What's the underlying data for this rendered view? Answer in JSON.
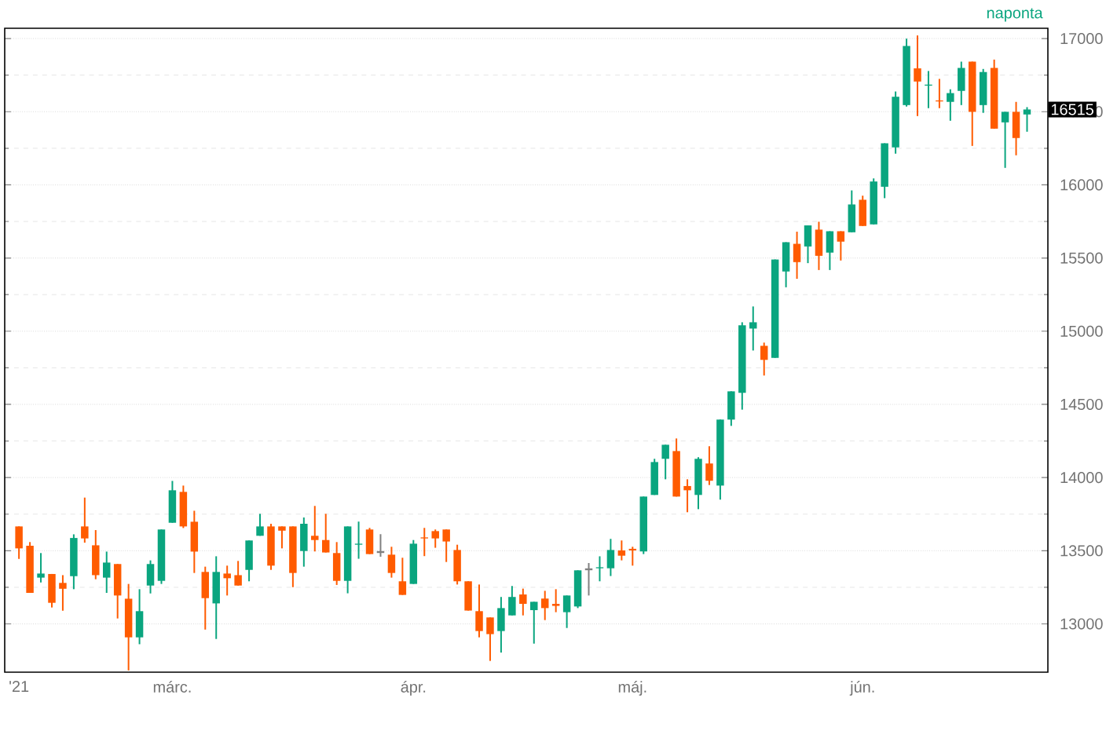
{
  "chart_data": {
    "type": "candlestick",
    "subtitle": "naponta",
    "categories": [
      "'21",
      null,
      null,
      null,
      null,
      null,
      null,
      null,
      null,
      null,
      null,
      null,
      null,
      null,
      "márc.",
      null,
      null,
      null,
      null,
      null,
      null,
      null,
      null,
      null,
      null,
      null,
      null,
      null,
      null,
      null,
      null,
      null,
      null,
      null,
      null,
      null,
      "ápr.",
      null,
      null,
      null,
      null,
      null,
      null,
      null,
      null,
      null,
      null,
      null,
      null,
      null,
      null,
      null,
      null,
      null,
      null,
      null,
      "máj.",
      null,
      null,
      null,
      null,
      null,
      null,
      null,
      null,
      null,
      null,
      null,
      null,
      null,
      null,
      null,
      null,
      null,
      null,
      null,
      null,
      "jún.",
      null,
      null,
      null,
      null,
      null,
      null,
      null,
      null,
      null,
      null,
      null,
      null,
      null,
      null,
      null
    ],
    "ohlc": [
      [
        13666,
        13666,
        13444,
        13516
      ],
      [
        13534,
        13559,
        13212,
        13212
      ],
      [
        13316,
        13484,
        13283,
        13344
      ],
      [
        13341,
        13341,
        13112,
        13144
      ],
      [
        13280,
        13333,
        13090,
        13240
      ],
      [
        13326,
        13612,
        13237,
        13587
      ],
      [
        13666,
        13863,
        13555,
        13584
      ],
      [
        13537,
        13641,
        13305,
        13333
      ],
      [
        13316,
        13494,
        13212,
        13419
      ],
      [
        13409,
        13409,
        13037,
        13194
      ],
      [
        13172,
        13273,
        12682,
        12908
      ],
      [
        12908,
        13237,
        12861,
        13087
      ],
      [
        13262,
        13434,
        13208,
        13409
      ],
      [
        13294,
        13645,
        13273,
        13645
      ],
      [
        13691,
        13977,
        13691,
        13913
      ],
      [
        13902,
        13945,
        13655,
        13666
      ],
      [
        13698,
        13773,
        13348,
        13494
      ],
      [
        13355,
        13391,
        12961,
        13176
      ],
      [
        13140,
        13462,
        12897,
        13355
      ],
      [
        13344,
        13398,
        13194,
        13312
      ],
      [
        13333,
        13430,
        13262,
        13262
      ],
      [
        13369,
        13570,
        13291,
        13570
      ],
      [
        13602,
        13752,
        13602,
        13666
      ],
      [
        13666,
        13684,
        13369,
        13398
      ],
      [
        13666,
        13666,
        13516,
        13637
      ],
      [
        13666,
        13666,
        13251,
        13348
      ],
      [
        13498,
        13727,
        13391,
        13684
      ],
      [
        13602,
        13806,
        13495,
        13573
      ],
      [
        13573,
        13752,
        13488,
        13488
      ],
      [
        13484,
        13559,
        13266,
        13294
      ],
      [
        13294,
        13666,
        13209,
        13666
      ],
      [
        13541,
        13699,
        13445,
        13548
      ],
      [
        13645,
        13656,
        13477,
        13477
      ],
      [
        13491,
        13613,
        13459,
        13491
      ],
      [
        13473,
        13527,
        13316,
        13348
      ],
      [
        13291,
        13452,
        13198,
        13198
      ],
      [
        13273,
        13573,
        13273,
        13548
      ],
      [
        13591,
        13656,
        13463,
        13584
      ],
      [
        13634,
        13645,
        13520,
        13584
      ],
      [
        13645,
        13645,
        13423,
        13563
      ],
      [
        13505,
        13541,
        13269,
        13291
      ],
      [
        13291,
        13291,
        13091,
        13091
      ],
      [
        13087,
        13269,
        12908,
        12951
      ],
      [
        13044,
        13044,
        12747,
        12930
      ],
      [
        12951,
        13184,
        12804,
        13108
      ],
      [
        13058,
        13259,
        13058,
        13184
      ],
      [
        13201,
        13241,
        13058,
        13137
      ],
      [
        13094,
        13151,
        12865,
        13151
      ],
      [
        13173,
        13226,
        13026,
        13108
      ],
      [
        13137,
        13237,
        13080,
        13123
      ],
      [
        13080,
        13194,
        12972,
        13194
      ],
      [
        13119,
        13366,
        13108,
        13366
      ],
      [
        13373,
        13416,
        13194,
        13373
      ],
      [
        13380,
        13462,
        13291,
        13387
      ],
      [
        13380,
        13581,
        13327,
        13505
      ],
      [
        13502,
        13570,
        13434,
        13466
      ],
      [
        13513,
        13527,
        13398,
        13502
      ],
      [
        13495,
        13870,
        13477,
        13870
      ],
      [
        13881,
        14128,
        13881,
        14106
      ],
      [
        14128,
        14224,
        13988,
        14224
      ],
      [
        14181,
        14267,
        13870,
        13870
      ],
      [
        13942,
        13988,
        13763,
        13913
      ],
      [
        13881,
        14139,
        13784,
        14128
      ],
      [
        14096,
        14214,
        13949,
        13978
      ],
      [
        13945,
        14396,
        13849,
        14396
      ],
      [
        14396,
        14589,
        14353,
        14589
      ],
      [
        14579,
        15061,
        14464,
        15040
      ],
      [
        15018,
        15169,
        14868,
        15061
      ],
      [
        14900,
        14922,
        14697,
        14804
      ],
      [
        14818,
        15490,
        14818,
        15490
      ],
      [
        15408,
        15608,
        15300,
        15608
      ],
      [
        15597,
        15680,
        15358,
        15472
      ],
      [
        15579,
        15723,
        15465,
        15723
      ],
      [
        15694,
        15748,
        15418,
        15515
      ],
      [
        15537,
        15683,
        15418,
        15683
      ],
      [
        15683,
        15683,
        15483,
        15612
      ],
      [
        15676,
        15962,
        15676,
        15866
      ],
      [
        15898,
        15926,
        15719,
        15719
      ],
      [
        15730,
        16044,
        15730,
        16023
      ],
      [
        15987,
        16284,
        15909,
        16284
      ],
      [
        16256,
        16638,
        16213,
        16602
      ],
      [
        16545,
        16999,
        16535,
        16949
      ],
      [
        16796,
        17021,
        16470,
        16706
      ],
      [
        16678,
        16778,
        16524,
        16685
      ],
      [
        16577,
        16724,
        16524,
        16570
      ],
      [
        16567,
        16653,
        16438,
        16627
      ],
      [
        16642,
        16842,
        16545,
        16799
      ],
      [
        16842,
        16842,
        16266,
        16499
      ],
      [
        16545,
        16792,
        16492,
        16771
      ],
      [
        16799,
        16856,
        16384,
        16384
      ],
      [
        16427,
        16499,
        16116,
        16499
      ],
      [
        16499,
        16567,
        16202,
        16320
      ],
      [
        16481,
        16531,
        16363,
        16515
      ]
    ],
    "colors": [
      "#ff5b00",
      "#ff5b00",
      "#0aa57f",
      "#ff5b00",
      "#ff5b00",
      "#0aa57f",
      "#ff5b00",
      "#ff5b00",
      "#0aa57f",
      "#ff5b00",
      "#ff5b00",
      "#0aa57f",
      "#0aa57f",
      "#0aa57f",
      "#0aa57f",
      "#ff5b00",
      "#ff5b00",
      "#ff5b00",
      "#0aa57f",
      "#ff5b00",
      "#ff5b00",
      "#0aa57f",
      "#0aa57f",
      "#ff5b00",
      "#ff5b00",
      "#ff5b00",
      "#0aa57f",
      "#ff5b00",
      "#ff5b00",
      "#ff5b00",
      "#0aa57f",
      "#0aa57f",
      "#ff5b00",
      "#808080",
      "#ff5b00",
      "#ff5b00",
      "#0aa57f",
      "#ff5b00",
      "#ff5b00",
      "#ff5b00",
      "#ff5b00",
      "#ff5b00",
      "#ff5b00",
      "#ff5b00",
      "#0aa57f",
      "#0aa57f",
      "#ff5b00",
      "#0aa57f",
      "#ff5b00",
      "#ff5b00",
      "#0aa57f",
      "#0aa57f",
      "#808080",
      "#0aa57f",
      "#0aa57f",
      "#ff5b00",
      "#ff5b00",
      "#0aa57f",
      "#0aa57f",
      "#0aa57f",
      "#ff5b00",
      "#ff5b00",
      "#0aa57f",
      "#ff5b00",
      "#0aa57f",
      "#0aa57f",
      "#0aa57f",
      "#0aa57f",
      "#ff5b00",
      "#0aa57f",
      "#0aa57f",
      "#ff5b00",
      "#0aa57f",
      "#ff5b00",
      "#0aa57f",
      "#ff5b00",
      "#0aa57f",
      "#ff5b00",
      "#0aa57f",
      "#0aa57f",
      "#0aa57f",
      "#0aa57f",
      "#ff5b00",
      "#0aa57f",
      "#ff5b00",
      "#0aa57f",
      "#0aa57f",
      "#ff5b00",
      "#0aa57f",
      "#ff5b00",
      "#0aa57f",
      "#ff5b00",
      "#0aa57f"
    ],
    "ylim": [
      12670,
      17070
    ],
    "yticks": [
      13000,
      13500,
      14000,
      14500,
      15000,
      15500,
      16000,
      16500,
      17000
    ],
    "grid": "y",
    "annotations": [
      {
        "text": "16515",
        "y": 16515
      }
    ]
  }
}
